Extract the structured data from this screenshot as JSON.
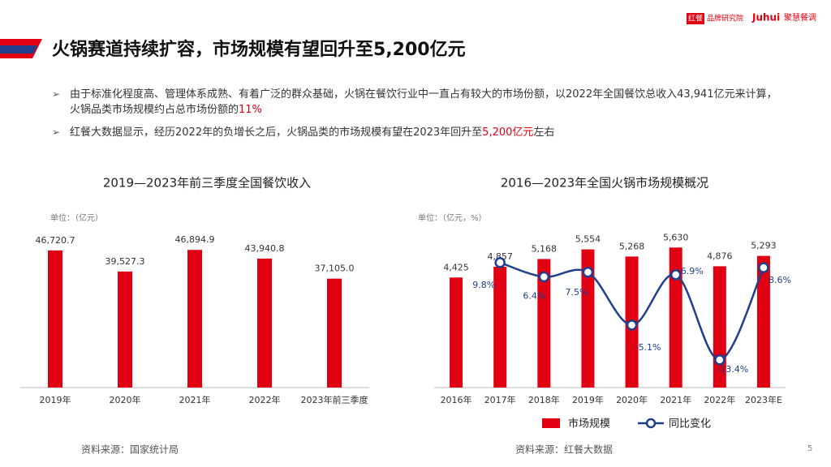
{
  "header": {
    "title": "火锅赛道持续扩容，市场规模有望回升至5,200亿元"
  },
  "logos": [
    "红餐",
    "品牌研究院",
    "Juhui",
    "聚慧餐调"
  ],
  "bullets": [
    {
      "text": "由于标准化程度高、管理体系成熟、有着广泛的群众基础，火锅在餐饮行业中一直占有较大的市场份额，以2022年全国餐饮总收入43,941亿元来计算，火锅品类市场规模约占总市场份额的",
      "highlight": "11%"
    },
    {
      "text": "红餐大数据显示，经历2022年的负增长之后，火锅品类的市场规模有望在2023年回升至",
      "highlight": "5,200亿元",
      "tail": "左右"
    }
  ],
  "chart_data": [
    {
      "type": "bar",
      "title": "2019—2023年前三季度全国餐饮收入",
      "unit_label": "单位：（亿元）",
      "categories": [
        "2019年",
        "2020年",
        "2021年",
        "2022年",
        "2023年前三季度"
      ],
      "values": [
        46720.7,
        39527.3,
        46894.9,
        43940.8,
        37105.0
      ],
      "value_labels": [
        "46,720.7",
        "39,527.3",
        "46,894.9",
        "43,940.8",
        "37,105.0"
      ],
      "color": "#e00012",
      "ylim": [
        0,
        50000
      ]
    },
    {
      "type": "bar_line",
      "title": "2016—2023年全国火锅市场规模概况",
      "unit_label": "单位：（亿元，%）",
      "categories": [
        "2016年",
        "2017年",
        "2018年",
        "2019年",
        "2020年",
        "2021年",
        "2022年",
        "2023年E"
      ],
      "series": [
        {
          "name": "市场规模",
          "type": "bar",
          "color": "#e00012",
          "values": [
            4425,
            4857,
            5168,
            5554,
            5268,
            5630,
            4876,
            5293
          ],
          "value_labels": [
            "4,425",
            "4,857",
            "5,168",
            "5,554",
            "5,268",
            "5,630",
            "4,876",
            "5,293"
          ]
        },
        {
          "name": "同比变化",
          "type": "line",
          "color": "#1f3e8c",
          "axis": "y2",
          "values": [
            null,
            9.8,
            6.4,
            7.5,
            -5.1,
            6.9,
            -13.4,
            8.6
          ],
          "value_labels": [
            null,
            "9.8%",
            "6.4%",
            "7.5%",
            "-5.1%",
            "6.9%",
            "-13.4%",
            "8.6%"
          ]
        }
      ],
      "ylim": [
        0,
        5900
      ],
      "y2lim": [
        -20,
        15
      ]
    }
  ],
  "sources": [
    "资料来源：国家统计局",
    "资料来源：红餐大数据"
  ],
  "page_number": "5"
}
